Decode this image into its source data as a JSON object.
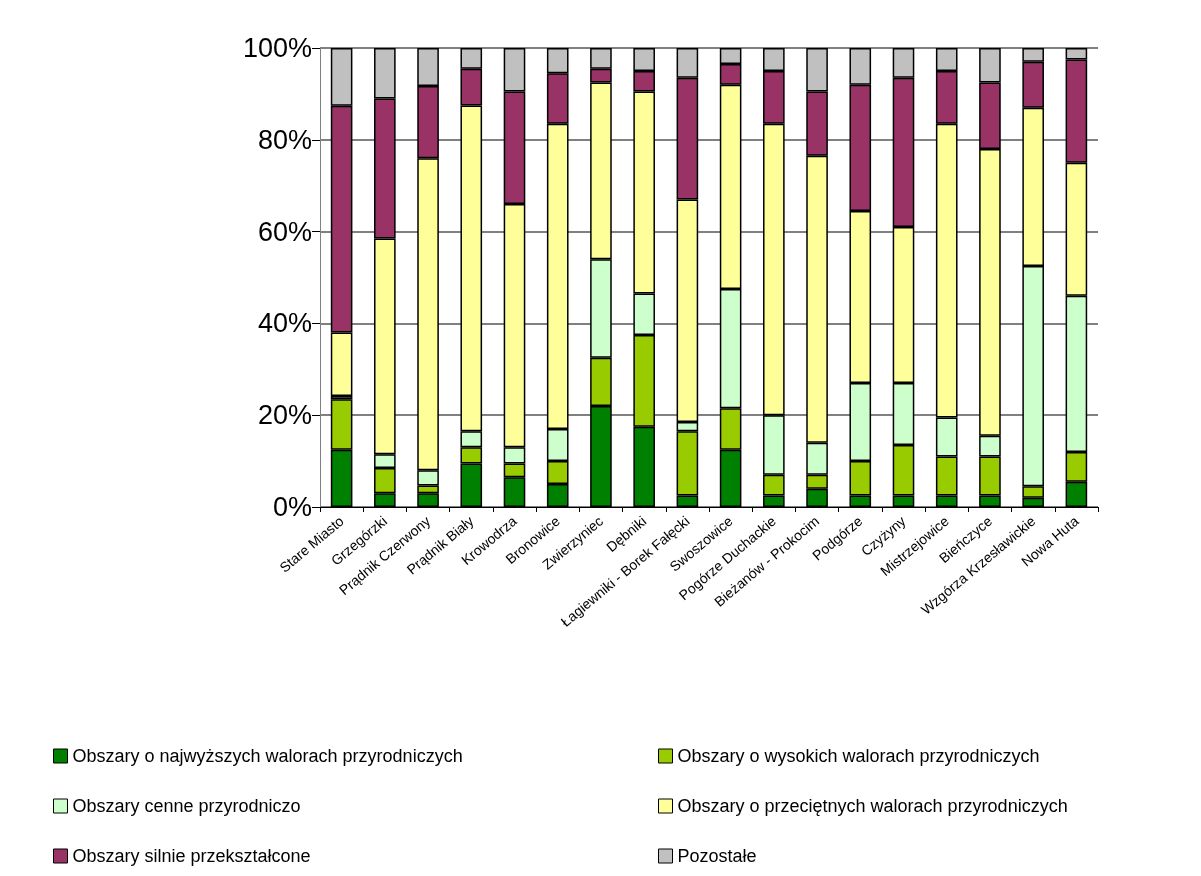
{
  "chart_data": {
    "type": "bar",
    "stacked": true,
    "grid": "y",
    "legend": "bottom",
    "categories": [
      "Stare Miasto",
      "Grzegórzki",
      "Prądnik Czerwony",
      "Prądnik Biały",
      "Krowodrza",
      "Bronowice",
      "Zwierzyniec",
      "Dębniki",
      "Łagiewniki - Borek Fałęcki",
      "Swoszowice",
      "Pogórze Duchackie",
      "Bieżanów - Prokocim",
      "Podgórze",
      "Czyżyny",
      "Mistrzejowice",
      "Bieńczyce",
      "Wzgórza Krzesławickie",
      "Nowa Huta"
    ],
    "ylim": [
      0,
      100
    ],
    "yticks": [
      {
        "value": 0,
        "label": "0%"
      },
      {
        "value": 20,
        "label": "20%"
      },
      {
        "value": 40,
        "label": "40%"
      },
      {
        "value": 60,
        "label": "60%"
      },
      {
        "value": 80,
        "label": "80%"
      },
      {
        "value": 100,
        "label": "100%"
      }
    ],
    "series": [
      {
        "name": "Obszary o najwyższych walorach przyrodniczych",
        "color": "#008000",
        "values": [
          12.5,
          3,
          3,
          9.5,
          6.5,
          5,
          22,
          17.5,
          2.5,
          12.5,
          2.5,
          4,
          2.5,
          2.5,
          2.5,
          2.5,
          2,
          5.5
        ]
      },
      {
        "name": "Obszary o wysokich walorach przyrodniczych",
        "color": "#99cc00",
        "values": [
          11,
          5.5,
          1.7,
          3.5,
          3,
          5,
          10.5,
          20,
          14,
          9,
          4.5,
          3,
          7.5,
          11,
          8.5,
          8.5,
          2.5,
          6.5
        ]
      },
      {
        "name": "Obszary cenne przyrodniczo",
        "color": "#ccffcc",
        "values": [
          0.7,
          3,
          3.3,
          3.5,
          3.5,
          7,
          21.5,
          9,
          2,
          26,
          13,
          7,
          17,
          13.5,
          8.5,
          4.5,
          48,
          34
        ]
      },
      {
        "name": "Obszary o przeciętnych walorach przyrodniczych",
        "color": "#ffff99",
        "values": [
          13.8,
          47,
          68,
          71,
          53,
          66.5,
          38.5,
          44,
          48.5,
          44.5,
          63.5,
          62.5,
          37.5,
          34,
          64,
          62.5,
          34.5,
          29
        ]
      },
      {
        "name": "Obszary silnie przekształcone",
        "color": "#993366",
        "values": [
          49.4,
          30.5,
          15.7,
          8,
          24.5,
          11,
          3,
          4.5,
          26.5,
          4.5,
          11.5,
          14,
          27.5,
          32.5,
          11.5,
          14.5,
          10,
          22.5
        ]
      },
      {
        "name": "Pozostałe",
        "color": "#c0c0c0",
        "values": [
          12.6,
          11,
          8.3,
          4.5,
          9.5,
          5.5,
          4.5,
          5,
          6.5,
          3.5,
          5,
          9.5,
          8,
          6.5,
          5,
          7.5,
          3,
          2.5
        ]
      }
    ]
  }
}
